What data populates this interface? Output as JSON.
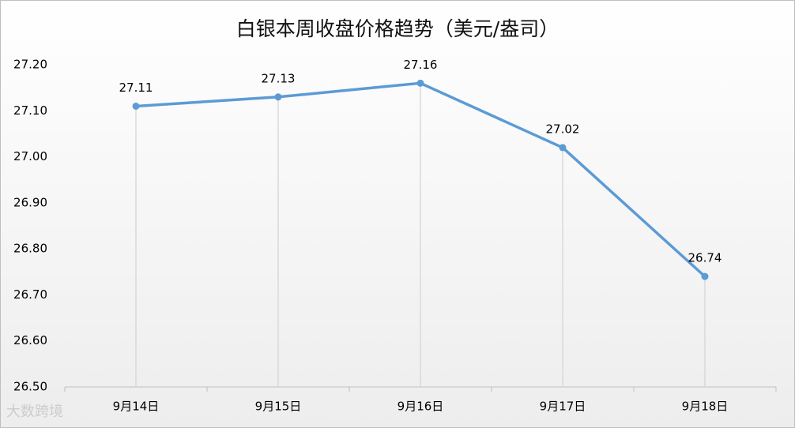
{
  "chart_data": {
    "type": "line",
    "title": "白银本周收盘价格趋势（美元/盎司）",
    "categories": [
      "9月14日",
      "9月15日",
      "9月16日",
      "9月17日",
      "9月18日"
    ],
    "values": [
      27.11,
      27.13,
      27.16,
      27.02,
      26.74
    ],
    "color": "#5b9bd5",
    "ylim": [
      26.5,
      27.2
    ],
    "yticks": [
      {
        "value": 26.5,
        "label": "26.50"
      },
      {
        "value": 26.6,
        "label": "26.60"
      },
      {
        "value": 26.7,
        "label": "26.70"
      },
      {
        "value": 26.8,
        "label": "26.80"
      },
      {
        "value": 26.9,
        "label": "26.90"
      },
      {
        "value": 27.0,
        "label": "27.00"
      },
      {
        "value": 27.1,
        "label": "27.10"
      },
      {
        "value": 27.2,
        "label": "27.20"
      }
    ],
    "drop_lines": true,
    "watermark": "大数跨境"
  }
}
